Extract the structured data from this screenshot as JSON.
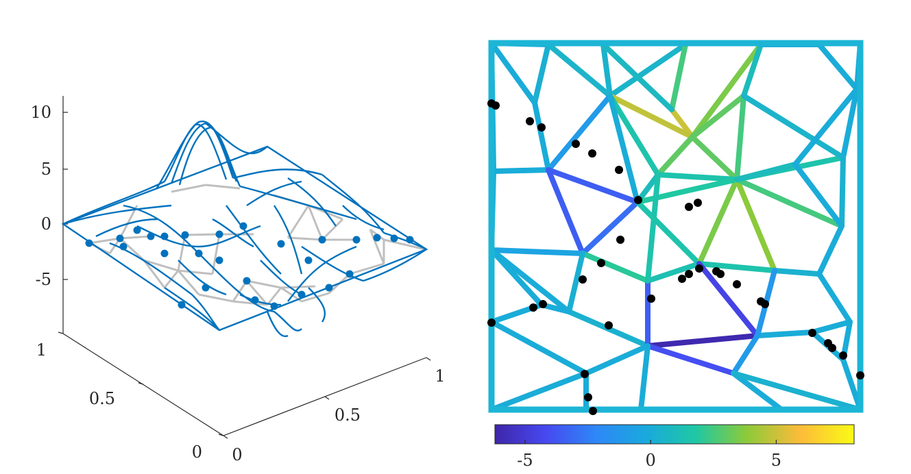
{
  "chart_data": [
    {
      "type": "surface-3d",
      "title": "",
      "xlabel": "",
      "ylabel": "",
      "zlabel": "",
      "x_ticks": [
        "0",
        "0.5",
        "1"
      ],
      "y_ticks": [
        "0",
        "0.5",
        "1"
      ],
      "z_ticks": [
        "10",
        "5",
        "0",
        "-5"
      ],
      "xlim": [
        0,
        1
      ],
      "ylim": [
        0,
        1
      ],
      "zlim": [
        -8,
        11
      ],
      "grid": false,
      "series": [
        {
          "style": "mesh-edges-3d",
          "color": "#0072bd"
        },
        {
          "style": "base-graph",
          "color": "#bfbfbf"
        },
        {
          "style": "markers",
          "color": "#0072bd"
        }
      ]
    },
    {
      "type": "heatmap",
      "title": "",
      "xlim": [
        0,
        1
      ],
      "ylim": [
        0,
        1
      ],
      "colorbar": {
        "ticks": [
          "-5",
          "0",
          "5"
        ],
        "range": [
          -6.2,
          8.1
        ],
        "colormap": "parula"
      },
      "marker_color": "#000000",
      "frame_color": "#1db5d6"
    }
  ]
}
